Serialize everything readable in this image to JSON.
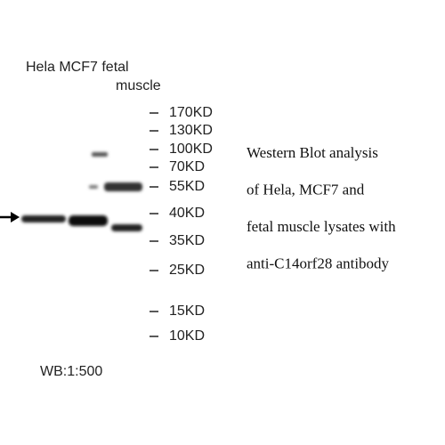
{
  "lanes": {
    "line1": "Hela MCF7 fetal",
    "line2": "muscle"
  },
  "markers": [
    "170KD",
    "130KD",
    "100KD",
    "70KD",
    "55KD",
    "40KD",
    "35KD",
    "25KD",
    "15KD",
    "10KD"
  ],
  "caption": [
    "Western Blot analysis",
    "of Hela, MCF7 and",
    "fetal muscle lysates with",
    "anti-C14orf28 antibody"
  ],
  "footer": "WB:1:500"
}
